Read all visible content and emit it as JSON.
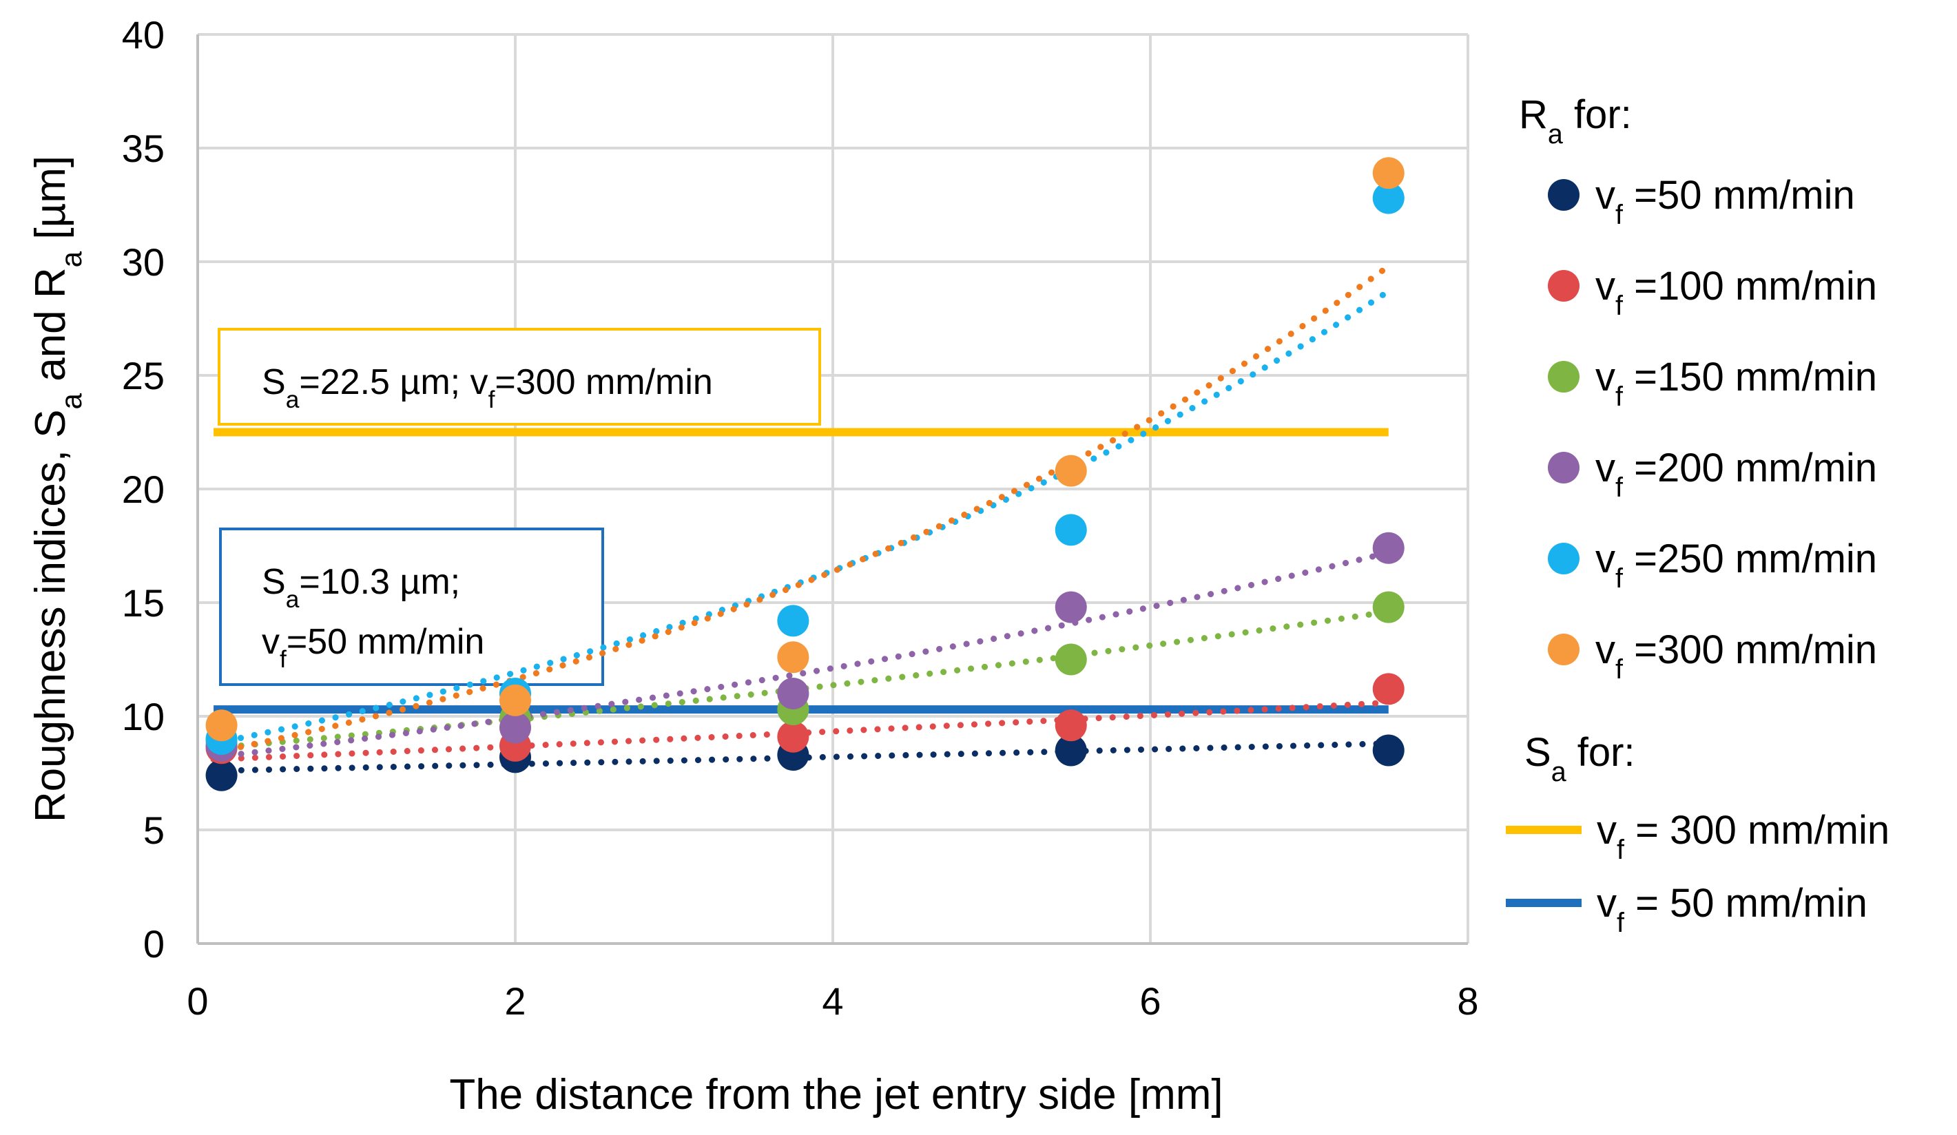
{
  "chart_data": {
    "type": "scatter",
    "xlabel": "The distance from the jet entry side [mm]",
    "ylabel": {
      "prefix": "Roughness indices, S",
      "sub1": "a",
      "mid": " and R",
      "sub2": "a",
      "suffix": " [µm]"
    },
    "xlim": [
      0,
      8
    ],
    "ylim": [
      0,
      40
    ],
    "x_ticks": [
      0,
      2,
      4,
      6,
      8
    ],
    "y_ticks": [
      0,
      5,
      10,
      15,
      20,
      25,
      30,
      35,
      40
    ],
    "grid": true,
    "x": [
      0.15,
      2,
      3.75,
      5.5,
      7.5
    ],
    "series": [
      {
        "name": "vf =50 mm/min",
        "symbol": "v",
        "sub": "f",
        "tail": " =50 mm/min",
        "color": "#0a2e63",
        "values": [
          7.4,
          8.2,
          8.3,
          8.5,
          8.5
        ],
        "trend": {
          "x0": 0.1,
          "y0": 7.6,
          "x1": 7.5,
          "y1": 8.8
        }
      },
      {
        "name": "vf =100 mm/min",
        "symbol": "v",
        "sub": "f",
        "tail": " =100 mm/min",
        "color": "#e04a4a",
        "values": [
          8.6,
          8.7,
          9.1,
          9.6,
          11.2
        ],
        "trend": {
          "x0": 0.1,
          "y0": 8.1,
          "x1": 7.5,
          "y1": 10.6
        }
      },
      {
        "name": "vf =150 mm/min",
        "symbol": "v",
        "sub": "f",
        "tail": " =150 mm/min",
        "color": "#7fb543",
        "values": [
          8.9,
          9.9,
          10.3,
          12.5,
          14.8
        ],
        "trend": {
          "x0": 0.1,
          "y0": 8.6,
          "x1": 7.5,
          "y1": 14.6
        }
      },
      {
        "name": "vf =200 mm/min",
        "symbol": "v",
        "sub": "f",
        "tail": " =200 mm/min",
        "color": "#8e63a8",
        "values": [
          8.7,
          9.5,
          11.0,
          14.8,
          17.4
        ],
        "trend": {
          "x0": 0.1,
          "y0": 8.2,
          "x1": 7.5,
          "y1": 17.2
        }
      },
      {
        "name": "vf =250 mm/min",
        "symbol": "v",
        "sub": "f",
        "tail": " =250 mm/min",
        "color": "#19b2ee",
        "values": [
          9.0,
          11.0,
          14.2,
          18.2,
          32.8
        ],
        "trend": {
          "x0": 0.1,
          "y0": 8.8,
          "x1": 7.5,
          "y1": 28.7
        }
      },
      {
        "name": "vf =300 mm/min",
        "symbol": "v",
        "sub": "f",
        "tail": " =300 mm/min",
        "color": "#f79a3e",
        "values": [
          9.6,
          10.7,
          12.6,
          20.8,
          33.9
        ],
        "trend": {
          "x0": 0.1,
          "y0": 8.4,
          "x1": 7.5,
          "y1": 29.8
        }
      }
    ],
    "trend_colors": {
      "vf =300 mm/min": "#f07a1e"
    },
    "reference_lines": [
      {
        "name": "vf = 300 mm/min",
        "symbol": "v",
        "sub": "f",
        "tail": " = 300 mm/min",
        "y": 22.5,
        "color": "#ffc000",
        "x0": 0.1,
        "x1": 7.5
      },
      {
        "name": "vf = 50 mm/min",
        "symbol": "v",
        "sub": "f",
        "tail": " = 50 mm/min",
        "y": 10.3,
        "color": "#1f6fbf",
        "x0": 0.1,
        "x1": 7.5
      }
    ],
    "annotations": [
      {
        "lines": [
          {
            "parts": [
              [
                "S",
                ""
              ],
              [
                "a",
                "sub"
              ],
              [
                "=22.5 µm; v",
                ""
              ],
              [
                "f",
                "sub"
              ],
              [
                "=300 mm/min",
                ""
              ]
            ]
          }
        ],
        "color": "#ffc000"
      },
      {
        "lines": [
          {
            "parts": [
              [
                "S",
                ""
              ],
              [
                "a",
                "sub"
              ],
              [
                "=10.3 µm;",
                ""
              ]
            ]
          },
          {
            "parts": [
              [
                "v",
                ""
              ],
              [
                "f",
                "sub"
              ],
              [
                "=50 mm/min",
                ""
              ]
            ]
          }
        ],
        "color": "#1f6fbf"
      }
    ],
    "legend": {
      "position": "right",
      "ra_header": {
        "main": "R",
        "sub": "a",
        "tail": " for:"
      },
      "sa_header": {
        "main": "S",
        "sub": "a",
        "tail": " for:"
      }
    }
  }
}
